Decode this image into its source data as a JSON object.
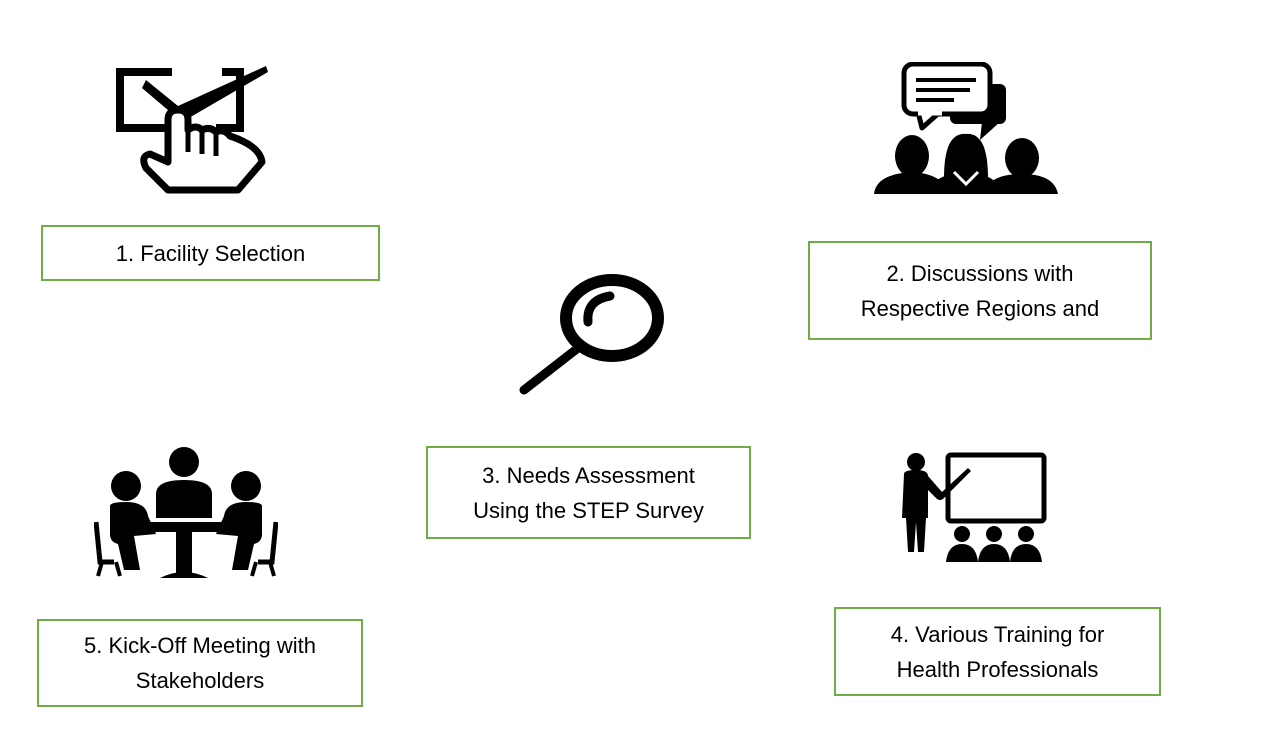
{
  "steps": [
    {
      "lines": [
        "1. Facility Selection"
      ],
      "icon": "checkbox-hand-icon"
    },
    {
      "lines": [
        "2. Discussions with",
        "Respective Regions and"
      ],
      "icon": "group-discussion-icon"
    },
    {
      "lines": [
        "3. Needs Assessment",
        "Using the STEP Survey"
      ],
      "icon": "magnifier-icon"
    },
    {
      "lines": [
        "4. Various Training for",
        "Health Professionals"
      ],
      "icon": "presentation-training-icon"
    },
    {
      "lines": [
        "5. Kick-Off Meeting with",
        "Stakeholders"
      ],
      "icon": "meeting-table-icon"
    }
  ],
  "colors": {
    "box_border": "#70ad47",
    "icon": "#000000",
    "text": "#000000"
  }
}
